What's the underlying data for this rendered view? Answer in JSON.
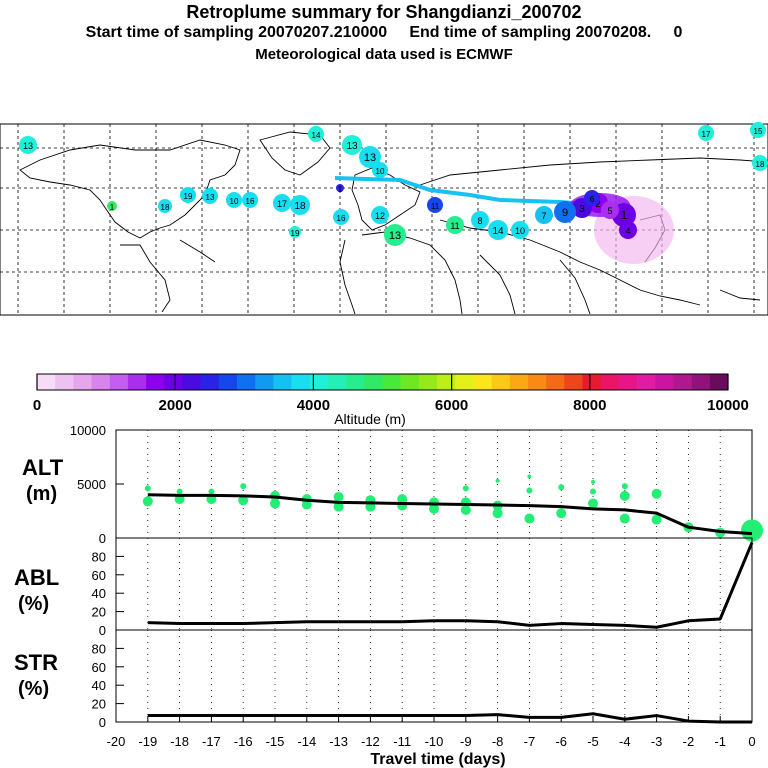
{
  "header": {
    "title": "Retroplume summary for Shangdianzi_200702",
    "line2": "Start time of sampling 20070207.210000     End time of sampling 20070208.     0",
    "line3": "Meteorological data used is ECMWF"
  },
  "colorbar": {
    "ticks": [
      "0",
      "2000",
      "4000",
      "6000",
      "8000",
      "10000"
    ],
    "label": "Altitude (m)",
    "colors": [
      "#f6dcf6",
      "#eec2f0",
      "#e6a6ee",
      "#d884ec",
      "#c45ef0",
      "#aa2ef0",
      "#8c00ee",
      "#6e00e6",
      "#4a0ae2",
      "#2a22e6",
      "#1646ee",
      "#1070f2",
      "#109af2",
      "#14c2f2",
      "#18def0",
      "#1ef0da",
      "#22f0b6",
      "#26ee8e",
      "#30ea66",
      "#48e83c",
      "#6ee822",
      "#96ea18",
      "#bcee18",
      "#e2f218",
      "#fae61a",
      "#fcca16",
      "#fca814",
      "#fa8a14",
      "#f46a16",
      "#ee461c",
      "#e81a30",
      "#ec1466",
      "#e8148a",
      "#e01ca4",
      "#cc14a2",
      "#b01890",
      "#90127a",
      "#6a0c5e"
    ]
  },
  "map": {
    "cluster_labels": [
      "1",
      "2",
      "3",
      "4",
      "5",
      "6",
      "7",
      "8",
      "9",
      "10",
      "11",
      "12",
      "13",
      "14",
      "15",
      "16",
      "17",
      "18",
      "19",
      "20"
    ]
  },
  "chart_data": [
    {
      "type": "line",
      "panel": "ALT",
      "ylabel_line1": "ALT",
      "ylabel_line2": "(m)",
      "ylim": [
        0,
        10000
      ],
      "yticks": [
        "0",
        "5000",
        "10000"
      ],
      "x": [
        0,
        -1,
        -2,
        -3,
        -4,
        -5,
        -6,
        -7,
        -8,
        -9,
        -10,
        -11,
        -12,
        -13,
        -14,
        -15,
        -16,
        -17,
        -18,
        -19
      ],
      "values": [
        400,
        600,
        1000,
        2300,
        2600,
        2700,
        2900,
        3000,
        3050,
        3100,
        3150,
        3200,
        3250,
        3300,
        3500,
        3800,
        3900,
        3950,
        3950,
        4000
      ],
      "scatter": [
        [
          -19,
          4600
        ],
        [
          -19,
          3400
        ],
        [
          -18,
          4300
        ],
        [
          -18,
          3600
        ],
        [
          -17,
          4300
        ],
        [
          -17,
          3600
        ],
        [
          -16,
          4800
        ],
        [
          -16,
          3500
        ],
        [
          -15,
          3900
        ],
        [
          -15,
          3200
        ],
        [
          -14,
          3600
        ],
        [
          -14,
          3100
        ],
        [
          -13,
          3800
        ],
        [
          -13,
          2900
        ],
        [
          -12,
          3500
        ],
        [
          -12,
          2900
        ],
        [
          -11,
          3600
        ],
        [
          -11,
          3000
        ],
        [
          -10,
          3300
        ],
        [
          -10,
          2700
        ],
        [
          -9,
          4600
        ],
        [
          -9,
          3300
        ],
        [
          -9,
          2600
        ],
        [
          -8,
          5300
        ],
        [
          -8,
          3000
        ],
        [
          -8,
          2300
        ],
        [
          -7,
          5700
        ],
        [
          -7,
          4400
        ],
        [
          -7,
          1800
        ],
        [
          -6,
          4700
        ],
        [
          -6,
          2300
        ],
        [
          -5,
          5200
        ],
        [
          -5,
          4300
        ],
        [
          -5,
          3200
        ],
        [
          -4,
          4800
        ],
        [
          -4,
          3900
        ],
        [
          -4,
          1800
        ],
        [
          -3,
          4100
        ],
        [
          -3,
          1700
        ],
        [
          -2,
          1000
        ],
        [
          -1,
          500
        ],
        [
          0,
          700
        ],
        [
          0,
          300
        ]
      ]
    },
    {
      "type": "line",
      "panel": "ABL",
      "ylabel_line1": "ABL",
      "ylabel_line2": "(%)",
      "ylim": [
        0,
        100
      ],
      "yticks": [
        "0",
        "20",
        "40",
        "60",
        "80"
      ],
      "x": [
        0,
        -1,
        -2,
        -3,
        -4,
        -5,
        -6,
        -7,
        -8,
        -9,
        -10,
        -11,
        -12,
        -13,
        -14,
        -15,
        -16,
        -17,
        -18,
        -19
      ],
      "values": [
        95,
        12,
        10,
        3,
        5,
        6,
        7,
        5,
        9,
        10,
        10,
        9,
        9,
        9,
        9,
        8,
        7,
        7,
        7,
        8
      ]
    },
    {
      "type": "line",
      "panel": "STR",
      "ylabel_line1": "STR",
      "ylabel_line2": "(%)",
      "ylim": [
        0,
        100
      ],
      "yticks": [
        "0",
        "20",
        "40",
        "60",
        "80"
      ],
      "x": [
        0,
        -1,
        -2,
        -3,
        -4,
        -5,
        -6,
        -7,
        -8,
        -9,
        -10,
        -11,
        -12,
        -13,
        -14,
        -15,
        -16,
        -17,
        -18,
        -19
      ],
      "values": [
        0,
        0,
        1,
        7,
        3,
        9,
        5,
        5,
        8,
        7,
        7,
        7,
        7,
        7,
        7,
        7,
        7,
        7,
        7,
        7
      ],
      "xlabel": "Travel time (days)",
      "xticks": [
        "-20",
        "-19",
        "-18",
        "-17",
        "-16",
        "-15",
        "-14",
        "-13",
        "-12",
        "-11",
        "-10",
        "-9",
        "-8",
        "-7",
        "-6",
        "-5",
        "-4",
        "-3",
        "-2",
        "-1",
        "0"
      ]
    }
  ]
}
